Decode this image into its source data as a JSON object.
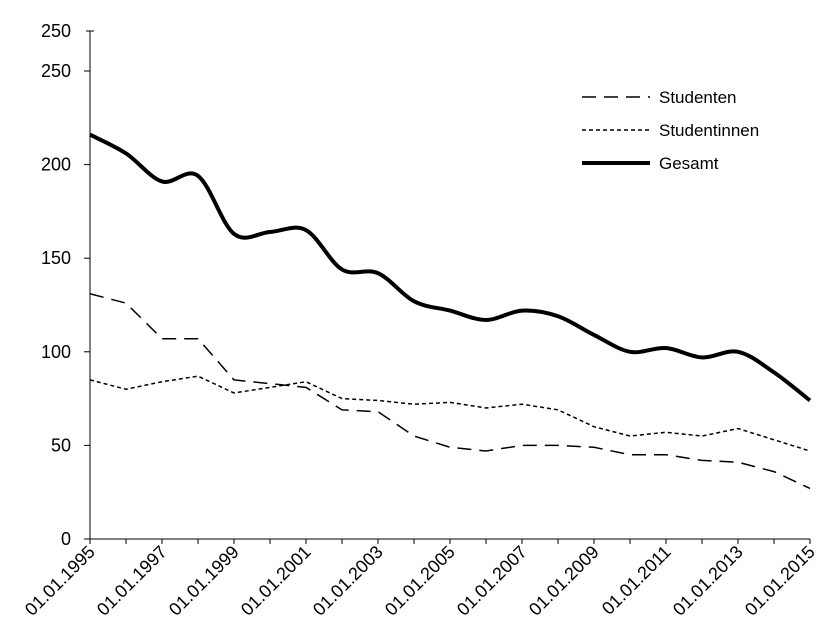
{
  "chart_data": {
    "type": "line",
    "title": "",
    "xlabel": "",
    "ylabel": "",
    "ylim": [
      0,
      250
    ],
    "yticks": [
      0,
      50,
      100,
      150,
      200,
      250
    ],
    "top_label": "250",
    "grid": false,
    "legend_position": "top-right",
    "x": [
      "01.01.1995",
      "01.01.1996",
      "01.01.1997",
      "01.01.1998",
      "01.01.1999",
      "01.01.2000",
      "01.01.2001",
      "01.01.2002",
      "01.01.2003",
      "01.01.2004",
      "01.01.2005",
      "01.01.2006",
      "01.01.2007",
      "01.01.2008",
      "01.01.2009",
      "01.01.2010",
      "01.01.2011",
      "01.01.2012",
      "01.01.2013",
      "01.01.2014",
      "01.01.2015"
    ],
    "xtick_labels": [
      "01.01.1995",
      "01.01.1997",
      "01.01.1999",
      "01.01.2001",
      "01.01.2003",
      "01.01.2005",
      "01.01.2007",
      "01.01.2009",
      "01.01.2011",
      "01.01.2013",
      "01.01.2015"
    ],
    "series": [
      {
        "name": "Studenten",
        "style": "dashed",
        "values": [
          131,
          126,
          107,
          107,
          85,
          83,
          81,
          69,
          68,
          55,
          49,
          47,
          50,
          50,
          49,
          45,
          45,
          42,
          41,
          36,
          27
        ]
      },
      {
        "name": "Studentinnen",
        "style": "dotted",
        "values": [
          85,
          80,
          84,
          87,
          78,
          81,
          84,
          75,
          74,
          72,
          73,
          70,
          72,
          69,
          60,
          55,
          57,
          55,
          59,
          53,
          47
        ]
      },
      {
        "name": "Gesamt",
        "style": "solid-thick",
        "values": [
          216,
          206,
          191,
          194,
          163,
          164,
          165,
          144,
          142,
          127,
          122,
          117,
          122,
          119,
          109,
          100,
          102,
          97,
          100,
          89,
          74
        ]
      }
    ]
  },
  "colors": {
    "line": "#000000",
    "background": "#ffffff"
  }
}
